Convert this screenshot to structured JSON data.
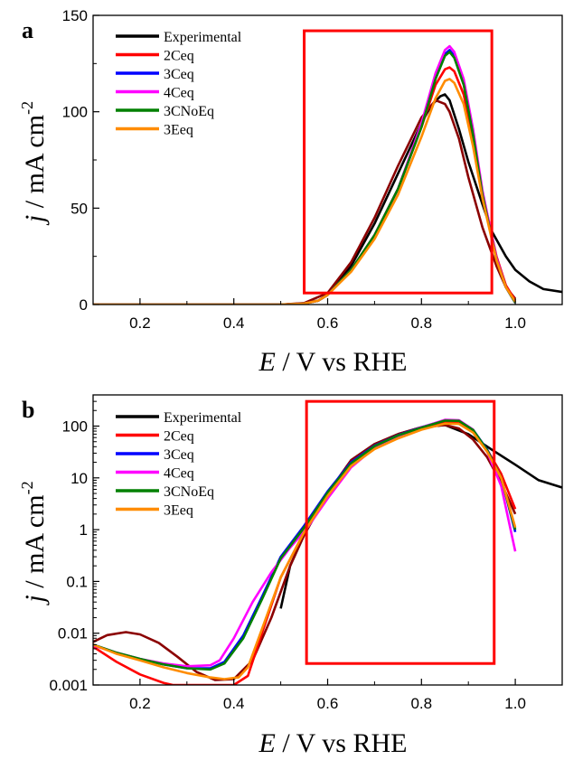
{
  "chart_data": [
    {
      "panel_label": "a",
      "type": "line",
      "yscale": "linear",
      "xlim": [
        0.1,
        1.1
      ],
      "ylim": [
        0,
        150
      ],
      "xticks": [
        0.2,
        0.4,
        0.6,
        0.8,
        1.0
      ],
      "xtick_labels": [
        "0.2",
        "0.4",
        "0.6",
        "0.8",
        "1.0"
      ],
      "yticks": [
        0,
        50,
        100,
        150
      ],
      "ytick_labels": [
        "0",
        "50",
        "100",
        "150"
      ],
      "xlabel": {
        "italic": "E",
        "rest": " / V vs RHE"
      },
      "ylabel": {
        "italic": "j",
        "rest": " / mA cm",
        "sup": "-2"
      },
      "legend_position": "top-left",
      "highlight_box": {
        "x": [
          0.55,
          0.95
        ],
        "y": [
          6,
          142
        ],
        "color": "#ff0000"
      },
      "series": [
        {
          "name": "Experimental",
          "color": "#000000",
          "x": [
            0.1,
            0.5,
            0.55,
            0.58,
            0.6,
            0.65,
            0.7,
            0.75,
            0.8,
            0.82,
            0.84,
            0.85,
            0.86,
            0.88,
            0.9,
            0.93,
            0.95,
            0.98,
            1.0,
            1.03,
            1.06,
            1.1
          ],
          "y": [
            0,
            0,
            0.5,
            2,
            5,
            20,
            42,
            68,
            94,
            103,
            108,
            109,
            106,
            91,
            74,
            52,
            38,
            25,
            18,
            12,
            8,
            6.5
          ]
        },
        {
          "name": "",
          "color": "#8b0000",
          "x": [
            0.1,
            0.5,
            0.55,
            0.6,
            0.65,
            0.7,
            0.75,
            0.8,
            0.83,
            0.85,
            0.86,
            0.88,
            0.9,
            0.93,
            0.96,
            0.98,
            1.0
          ],
          "y": [
            0,
            0,
            0.8,
            6,
            22,
            45,
            72,
            97,
            106,
            104,
            100,
            86,
            66,
            40,
            20,
            9,
            3
          ]
        },
        {
          "name": "2Ceq",
          "color": "#ff0000",
          "x": [
            0.1,
            0.5,
            0.55,
            0.58,
            0.6,
            0.65,
            0.7,
            0.75,
            0.8,
            0.83,
            0.85,
            0.86,
            0.87,
            0.89,
            0.91,
            0.93,
            0.96,
            0.98,
            1.0
          ],
          "y": [
            0,
            0,
            0.5,
            2,
            5,
            18,
            36,
            60,
            92,
            114,
            122,
            123,
            121,
            109,
            86,
            58,
            25,
            10,
            2
          ]
        },
        {
          "name": "3Ceq",
          "color": "#0000ff",
          "x": [
            0.1,
            0.5,
            0.55,
            0.58,
            0.6,
            0.65,
            0.7,
            0.75,
            0.8,
            0.83,
            0.85,
            0.86,
            0.87,
            0.89,
            0.91,
            0.93,
            0.96,
            0.98,
            1.0
          ],
          "y": [
            0,
            0,
            0.5,
            2,
            5,
            18,
            36,
            60,
            93,
            118,
            130,
            132,
            129,
            115,
            89,
            58,
            24,
            9,
            1
          ]
        },
        {
          "name": "4Ceq",
          "color": "#ff00ff",
          "x": [
            0.1,
            0.5,
            0.55,
            0.58,
            0.6,
            0.65,
            0.7,
            0.75,
            0.8,
            0.83,
            0.85,
            0.86,
            0.87,
            0.89,
            0.91,
            0.93,
            0.96,
            0.98,
            1.0
          ],
          "y": [
            0,
            0,
            0.5,
            2,
            5,
            18,
            36,
            60,
            94,
            120,
            132,
            134,
            131,
            117,
            91,
            59,
            24,
            9,
            1
          ]
        },
        {
          "name": "3CNoEq",
          "color": "#008000",
          "x": [
            0.1,
            0.5,
            0.55,
            0.58,
            0.6,
            0.65,
            0.7,
            0.75,
            0.8,
            0.83,
            0.85,
            0.86,
            0.87,
            0.89,
            0.91,
            0.93,
            0.96,
            0.98,
            1.0
          ],
          "y": [
            0,
            0,
            0.5,
            2,
            5,
            18,
            36,
            60,
            92,
            117,
            129,
            131,
            128,
            114,
            88,
            57,
            23,
            9,
            1
          ]
        },
        {
          "name": "3Eeq",
          "color": "#ff8c00",
          "x": [
            0.1,
            0.5,
            0.55,
            0.58,
            0.6,
            0.65,
            0.7,
            0.75,
            0.8,
            0.83,
            0.85,
            0.86,
            0.87,
            0.89,
            0.91,
            0.93,
            0.96,
            0.98,
            1.0
          ],
          "y": [
            0,
            0,
            0.5,
            2,
            5,
            17,
            34,
            57,
            87,
            107,
            116,
            117,
            115,
            104,
            82,
            55,
            23,
            9,
            1.5
          ]
        }
      ]
    },
    {
      "panel_label": "b",
      "type": "line",
      "yscale": "log",
      "xlim": [
        0.1,
        1.1
      ],
      "ylim": [
        0.001,
        400
      ],
      "xticks": [
        0.2,
        0.4,
        0.6,
        0.8,
        1.0
      ],
      "xtick_labels": [
        "0.2",
        "0.4",
        "0.6",
        "0.8",
        "1.0"
      ],
      "yticks": [
        0.001,
        0.01,
        0.1,
        1,
        10,
        100
      ],
      "ytick_labels": [
        "0.001",
        "0.01",
        "0.1",
        "1",
        "10",
        "100"
      ],
      "xlabel": {
        "italic": "E",
        "rest": " / V vs RHE"
      },
      "ylabel": {
        "italic": "j",
        "rest": " / mA cm",
        "sup": "-2"
      },
      "legend_position": "top-left",
      "highlight_box": {
        "x": [
          0.555,
          0.955
        ],
        "y": [
          0.0026,
          300
        ],
        "color": "#ff0000"
      },
      "series": [
        {
          "name": "Experimental",
          "color": "#000000",
          "x": [
            0.5,
            0.52,
            0.55,
            0.6,
            0.65,
            0.7,
            0.75,
            0.8,
            0.85,
            0.9,
            0.95,
            1.0,
            1.05,
            1.1
          ],
          "y": [
            0.03,
            0.2,
            0.8,
            5,
            22,
            45,
            70,
            95,
            105,
            70,
            35,
            18,
            9,
            6.5
          ]
        },
        {
          "name": "",
          "color": "#8b0000",
          "x": [
            0.1,
            0.13,
            0.17,
            0.2,
            0.24,
            0.28,
            0.32,
            0.36,
            0.4,
            0.44,
            0.48,
            0.52,
            0.55,
            0.6,
            0.65,
            0.7,
            0.75,
            0.8,
            0.85,
            0.88,
            0.91,
            0.94,
            0.97,
            1.0
          ],
          "y": [
            0.0068,
            0.0092,
            0.0105,
            0.0095,
            0.0065,
            0.0035,
            0.0018,
            0.00125,
            0.0013,
            0.003,
            0.02,
            0.2,
            0.8,
            5,
            22,
            45,
            70,
            95,
            105,
            90,
            55,
            25,
            8,
            2
          ]
        },
        {
          "name": "2Ceq",
          "color": "#ff0000",
          "x": [
            0.1,
            0.15,
            0.2,
            0.25,
            0.27,
            0.4,
            0.43,
            0.46,
            0.5,
            0.55,
            0.6,
            0.65,
            0.7,
            0.75,
            0.8,
            0.85,
            0.88,
            0.91,
            0.94,
            0.97,
            1.0
          ],
          "y": [
            0.0055,
            0.0028,
            0.0016,
            0.0011,
            0.001,
            0.001,
            0.0015,
            0.01,
            0.12,
            0.9,
            5,
            20,
            42,
            67,
            95,
            120,
            118,
            80,
            35,
            12,
            2.5
          ]
        },
        {
          "name": "3Ceq",
          "color": "#0000ff",
          "x": [
            0.1,
            0.15,
            0.2,
            0.25,
            0.3,
            0.35,
            0.38,
            0.42,
            0.46,
            0.5,
            0.55,
            0.6,
            0.65,
            0.7,
            0.75,
            0.8,
            0.85,
            0.88,
            0.91,
            0.94,
            0.97,
            1.0
          ],
          "y": [
            0.006,
            0.0042,
            0.0032,
            0.0025,
            0.0021,
            0.0021,
            0.0028,
            0.009,
            0.05,
            0.3,
            1.2,
            5.5,
            20,
            42,
            67,
            95,
            130,
            128,
            85,
            35,
            10,
            0.9
          ]
        },
        {
          "name": "4Ceq",
          "color": "#ff00ff",
          "x": [
            0.1,
            0.15,
            0.2,
            0.25,
            0.3,
            0.35,
            0.37,
            0.4,
            0.44,
            0.48,
            0.52,
            0.56,
            0.6,
            0.65,
            0.7,
            0.75,
            0.8,
            0.85,
            0.88,
            0.91,
            0.94,
            0.97,
            1.0
          ],
          "y": [
            0.0058,
            0.0042,
            0.0032,
            0.0026,
            0.0023,
            0.0024,
            0.003,
            0.008,
            0.04,
            0.15,
            0.45,
            1.2,
            4,
            16,
            38,
            63,
            94,
            132,
            130,
            85,
            32,
            7,
            0.38
          ]
        },
        {
          "name": "3CNoEq",
          "color": "#008000",
          "x": [
            0.1,
            0.15,
            0.2,
            0.25,
            0.3,
            0.35,
            0.38,
            0.42,
            0.46,
            0.5,
            0.55,
            0.6,
            0.65,
            0.7,
            0.75,
            0.8,
            0.85,
            0.88,
            0.91,
            0.94,
            0.97,
            1.0
          ],
          "y": [
            0.006,
            0.0042,
            0.0032,
            0.0025,
            0.0021,
            0.002,
            0.0026,
            0.008,
            0.045,
            0.28,
            1.1,
            5.2,
            19,
            41,
            66,
            93,
            128,
            126,
            84,
            34,
            10,
            1
          ]
        },
        {
          "name": "3Eeq",
          "color": "#ff8c00",
          "x": [
            0.1,
            0.15,
            0.2,
            0.25,
            0.3,
            0.35,
            0.38,
            0.41,
            0.43,
            0.46,
            0.5,
            0.55,
            0.6,
            0.65,
            0.7,
            0.75,
            0.8,
            0.85,
            0.88,
            0.91,
            0.94,
            0.97,
            1.0
          ],
          "y": [
            0.006,
            0.004,
            0.003,
            0.0022,
            0.0017,
            0.0014,
            0.0013,
            0.0014,
            0.0022,
            0.012,
            0.12,
            0.9,
            4.5,
            17,
            36,
            58,
            85,
            112,
            110,
            75,
            32,
            10,
            1.1
          ]
        }
      ]
    }
  ]
}
